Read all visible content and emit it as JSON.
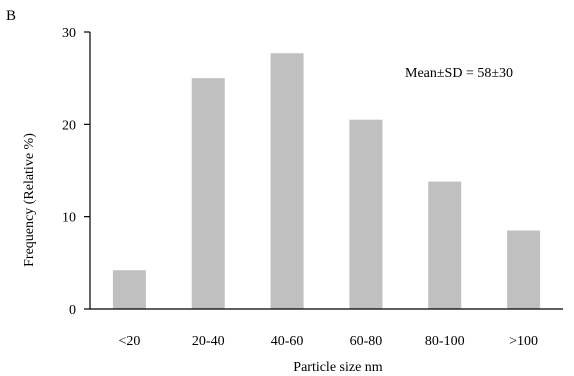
{
  "panel_label": "B",
  "annotation": "Mean±SD = 58±30",
  "chart_data": {
    "type": "bar",
    "categories": [
      "<20",
      "20-40",
      "40-60",
      "60-80",
      "80-100",
      ">100"
    ],
    "values": [
      4.2,
      25.0,
      27.7,
      20.5,
      13.8,
      8.5
    ],
    "xlabel": "Particle size nm",
    "ylabel": "Frequency (Relative %)",
    "ylim": [
      0,
      30
    ],
    "yticks": [
      0,
      10,
      20,
      30
    ],
    "bar_color": "#c0c0c0",
    "axis_color": "#000000",
    "grid": false,
    "legend": "none"
  }
}
